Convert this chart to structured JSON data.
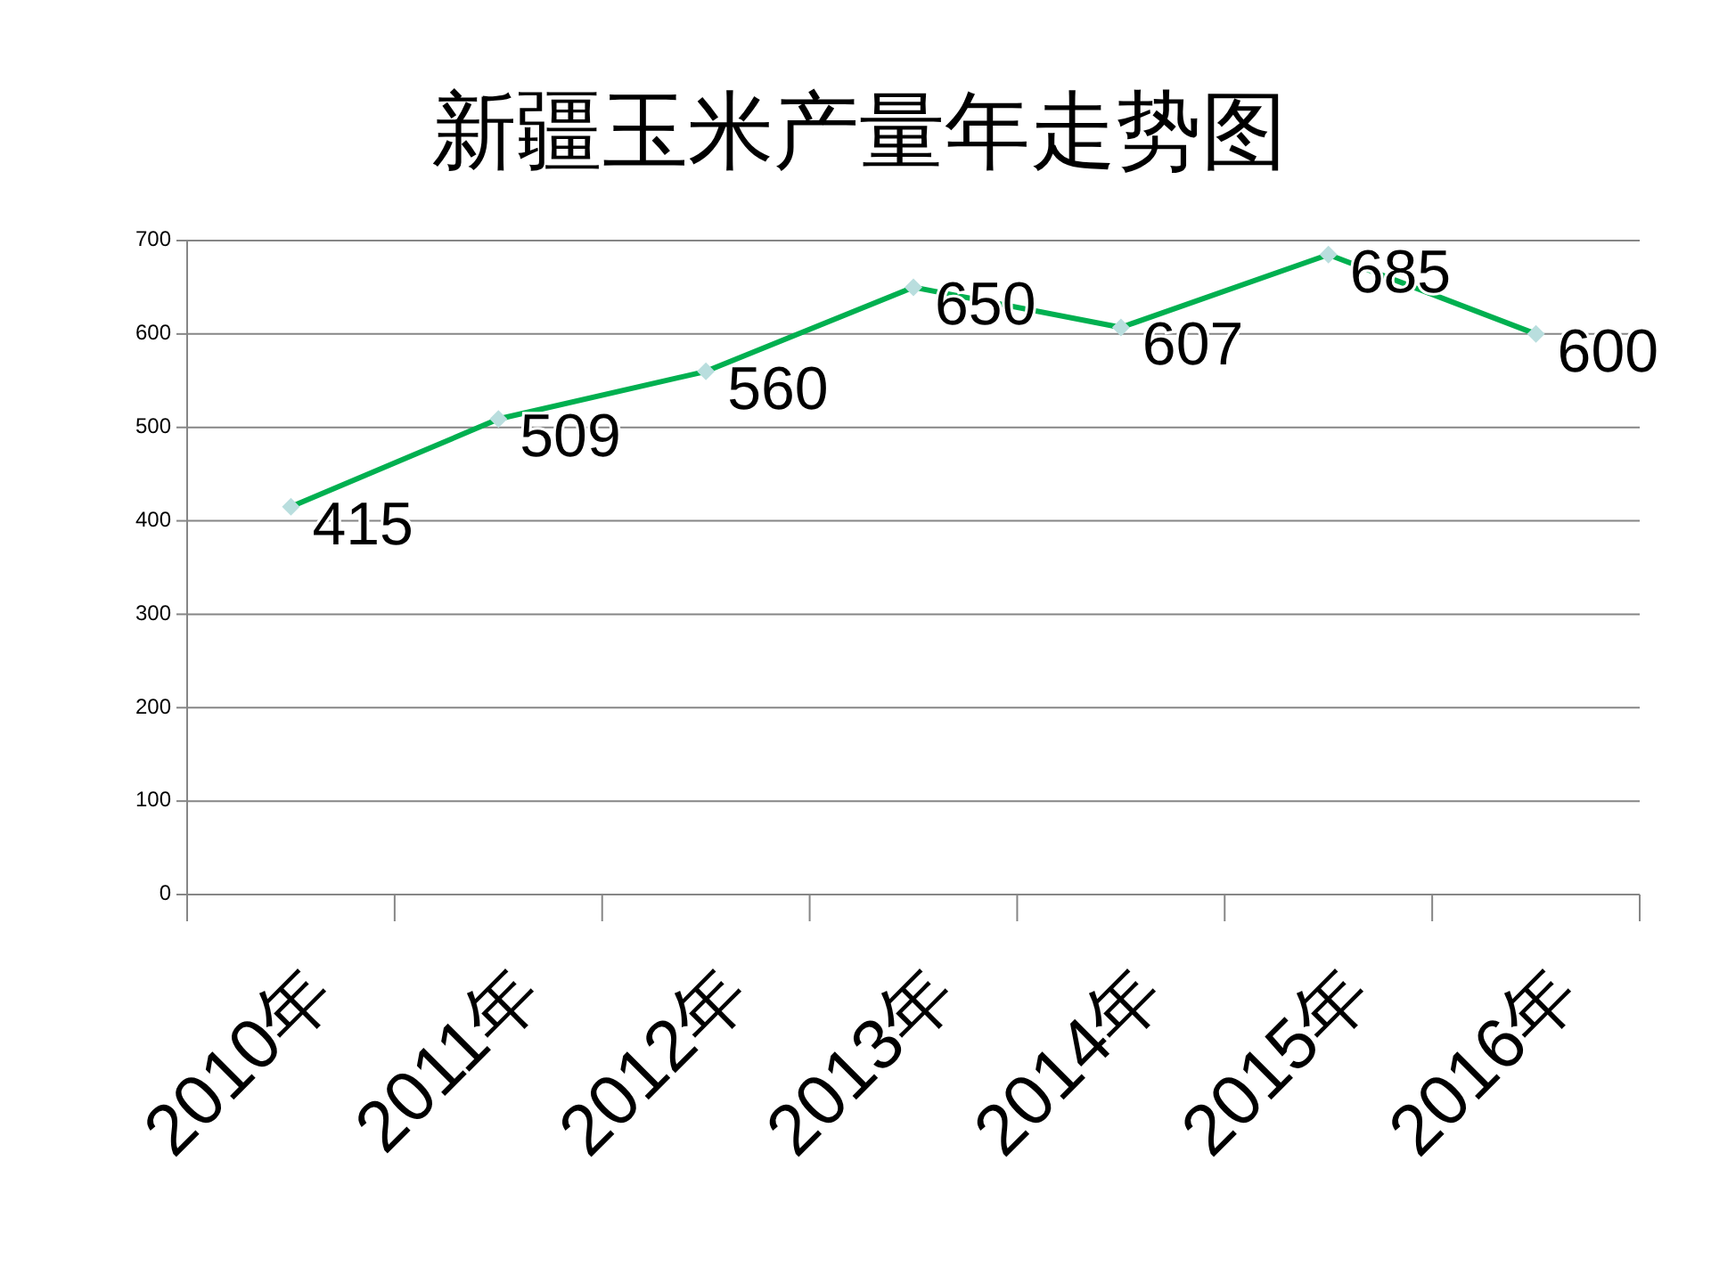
{
  "chart_data": {
    "type": "line",
    "title": "新疆玉米产量年走势图",
    "categories": [
      "2010年",
      "2011年",
      "2012年",
      "2013年",
      "2014年",
      "2015年",
      "2016年"
    ],
    "series": [
      {
        "color": "#00b050",
        "values": [
          415,
          509,
          560,
          650,
          607,
          685,
          600
        ]
      }
    ],
    "ylim": [
      0,
      700
    ],
    "yticks": [
      0,
      100,
      200,
      300,
      400,
      500,
      600,
      700
    ],
    "grid": "y",
    "marker": "diamond",
    "data_labels": true
  }
}
